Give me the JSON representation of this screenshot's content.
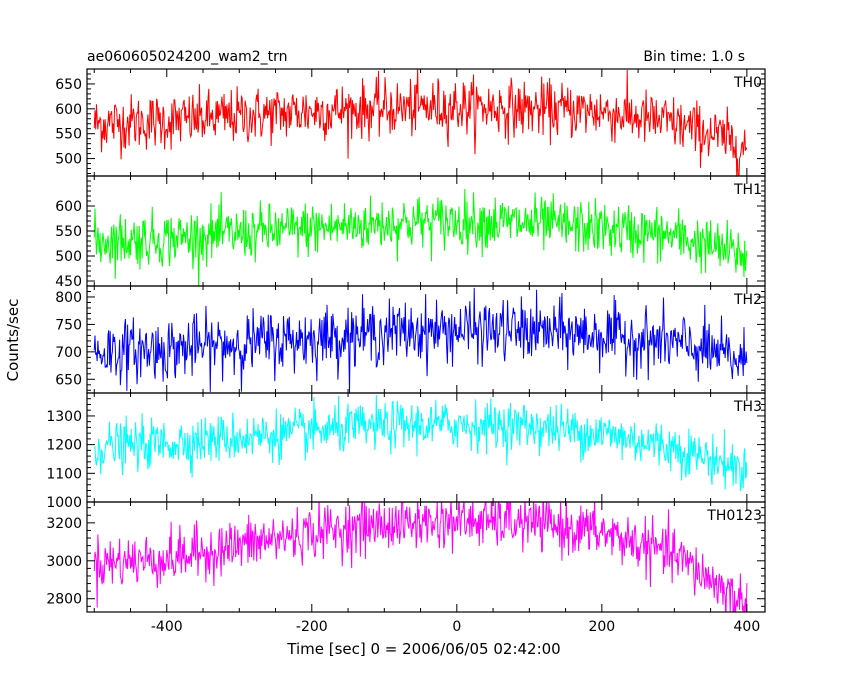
{
  "header": {
    "title": "ae060605024200_wam2_trn",
    "bin_time": "Bin time: 1.0 s"
  },
  "chart_data": {
    "type": "line",
    "xlabel": "Time [sec] 0 = 2006/06/05 02:42:00",
    "ylabel": "Counts/sec",
    "xlim": [
      -510,
      425
    ],
    "x_ticks": [
      "-400",
      "-200",
      "0",
      "200",
      "400"
    ],
    "x_tick_values": [
      -400,
      -200,
      0,
      200,
      400
    ],
    "x_start": -500,
    "x_end": 400,
    "bin": 1.0,
    "panels": [
      {
        "name": "TH0",
        "color": "#ff0000",
        "ylim": [
          465,
          680
        ],
        "y_ticks": [
          "650",
          "600",
          "550",
          "500"
        ],
        "y_tick_values": [
          650,
          600,
          550,
          500
        ],
        "trend_t": [
          -500,
          -400,
          -300,
          -200,
          -100,
          0,
          100,
          200,
          300,
          350,
          400
        ],
        "trend_v": [
          570,
          575,
          585,
          595,
          600,
          605,
          600,
          595,
          570,
          550,
          520
        ],
        "noise": 28
      },
      {
        "name": "TH1",
        "color": "#00ff00",
        "ylim": [
          440,
          660
        ],
        "y_ticks": [
          "600",
          "550",
          "500",
          "450"
        ],
        "y_tick_values": [
          600,
          550,
          500,
          450
        ],
        "trend_t": [
          -500,
          -400,
          -300,
          -200,
          -100,
          0,
          100,
          200,
          300,
          350,
          400
        ],
        "trend_v": [
          530,
          535,
          545,
          555,
          565,
          570,
          565,
          555,
          540,
          520,
          500
        ],
        "noise": 27
      },
      {
        "name": "TH2",
        "color": "#0000ff",
        "ylim": [
          625,
          820
        ],
        "y_ticks": [
          "800",
          "750",
          "700",
          "650"
        ],
        "y_tick_values": [
          800,
          750,
          700,
          650
        ],
        "trend_t": [
          -500,
          -400,
          -300,
          -200,
          -100,
          0,
          100,
          200,
          300,
          350,
          400
        ],
        "trend_v": [
          700,
          705,
          715,
          725,
          735,
          740,
          738,
          730,
          715,
          700,
          680
        ],
        "noise": 28
      },
      {
        "name": "TH3",
        "color": "#00ffff",
        "ylim": [
          1000,
          1380
        ],
        "y_ticks": [
          "1300",
          "1200",
          "1100",
          "1000"
        ],
        "y_tick_values": [
          1300,
          1200,
          1100,
          1000
        ],
        "trend_t": [
          -500,
          -400,
          -300,
          -200,
          -100,
          0,
          100,
          200,
          300,
          350,
          400
        ],
        "trend_v": [
          1190,
          1205,
          1225,
          1245,
          1265,
          1270,
          1265,
          1240,
          1190,
          1150,
          1110
        ],
        "noise": 42
      },
      {
        "name": "TH0123",
        "color": "#ff00ff",
        "ylim": [
          2730,
          3310
        ],
        "y_ticks": [
          "3200",
          "3000",
          "2800"
        ],
        "y_tick_values": [
          3200,
          3000,
          2800
        ],
        "trend_t": [
          -500,
          -400,
          -300,
          -200,
          -100,
          0,
          100,
          200,
          300,
          350,
          400
        ],
        "trend_v": [
          2990,
          3010,
          3080,
          3150,
          3190,
          3210,
          3200,
          3150,
          3030,
          2900,
          2760
        ],
        "noise": 70
      }
    ]
  }
}
